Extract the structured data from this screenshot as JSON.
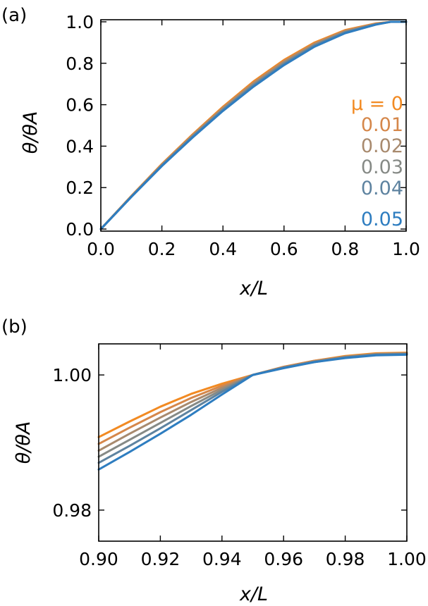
{
  "chart_data": [
    {
      "type": "line",
      "panel_label": "(a)",
      "xlabel": "x/L",
      "ylabel": "θ/θA",
      "xlim": [
        0.0,
        1.0
      ],
      "ylim": [
        -0.01,
        1.01
      ],
      "xticks": [
        0.0,
        0.2,
        0.4,
        0.6,
        0.8,
        1.0
      ],
      "xtick_labels": [
        "0.0",
        "0.2",
        "0.4",
        "0.6",
        "0.8",
        "1.0"
      ],
      "yticks": [
        0.0,
        0.2,
        0.4,
        0.6,
        0.8,
        1.0
      ],
      "ytick_labels": [
        "0.0",
        "0.2",
        "0.4",
        "0.6",
        "0.8",
        "1.0"
      ],
      "legend_title": "μ = 0",
      "legend_placement": "right",
      "series": [
        {
          "name": "0",
          "color": "#f28a22",
          "x": [
            0.0,
            0.1,
            0.2,
            0.3,
            0.4,
            0.5,
            0.6,
            0.7,
            0.8,
            0.9,
            0.95,
            1.0
          ],
          "y": [
            0.0,
            0.16,
            0.314,
            0.456,
            0.59,
            0.712,
            0.816,
            0.9,
            0.96,
            0.992,
            1.0,
            1.0
          ]
        },
        {
          "name": "0.01",
          "color": "#d5874a",
          "x": [
            0.0,
            0.1,
            0.2,
            0.3,
            0.4,
            0.5,
            0.6,
            0.7,
            0.8,
            0.9,
            0.95,
            1.0
          ],
          "y": [
            0.0,
            0.159,
            0.312,
            0.453,
            0.586,
            0.707,
            0.811,
            0.896,
            0.957,
            0.991,
            1.0,
            1.0
          ]
        },
        {
          "name": "0.02",
          "color": "#a88a6e",
          "x": [
            0.0,
            0.1,
            0.2,
            0.3,
            0.4,
            0.5,
            0.6,
            0.7,
            0.8,
            0.9,
            0.95,
            1.0
          ],
          "y": [
            0.0,
            0.158,
            0.31,
            0.45,
            0.582,
            0.702,
            0.806,
            0.892,
            0.954,
            0.989,
            1.0,
            1.0
          ]
        },
        {
          "name": "0.03",
          "color": "#868a86",
          "x": [
            0.0,
            0.1,
            0.2,
            0.3,
            0.4,
            0.5,
            0.6,
            0.7,
            0.8,
            0.9,
            0.95,
            1.0
          ],
          "y": [
            0.0,
            0.157,
            0.308,
            0.447,
            0.578,
            0.697,
            0.801,
            0.888,
            0.951,
            0.988,
            1.0,
            1.0
          ]
        },
        {
          "name": "0.04",
          "color": "#5e83a0",
          "x": [
            0.0,
            0.1,
            0.2,
            0.3,
            0.4,
            0.5,
            0.6,
            0.7,
            0.8,
            0.9,
            0.95,
            1.0
          ],
          "y": [
            0.0,
            0.156,
            0.306,
            0.444,
            0.574,
            0.692,
            0.796,
            0.884,
            0.948,
            0.987,
            1.0,
            1.0
          ]
        },
        {
          "name": "0.05",
          "color": "#2e7dc0",
          "x": [
            0.0,
            0.1,
            0.2,
            0.3,
            0.4,
            0.5,
            0.6,
            0.7,
            0.8,
            0.9,
            0.95,
            1.0
          ],
          "y": [
            0.0,
            0.155,
            0.304,
            0.441,
            0.57,
            0.687,
            0.791,
            0.88,
            0.945,
            0.986,
            1.0,
            1.0
          ]
        }
      ]
    },
    {
      "type": "line",
      "panel_label": "(b)",
      "xlabel": "x/L",
      "ylabel": "θ/θA",
      "xlim": [
        0.9,
        1.0
      ],
      "ylim": [
        0.9754,
        1.0046
      ],
      "xticks": [
        0.9,
        0.92,
        0.94,
        0.96,
        0.98,
        1.0
      ],
      "xtick_labels": [
        "0.90",
        "0.92",
        "0.94",
        "0.96",
        "0.98",
        "1.00"
      ],
      "yticks": [
        0.98,
        1.0
      ],
      "ytick_labels": [
        "0.98",
        "1.00"
      ],
      "series": [
        {
          "name": "0",
          "color": "#f28a22",
          "x": [
            0.9,
            0.91,
            0.92,
            0.93,
            0.94,
            0.95,
            0.96,
            0.97,
            0.98,
            0.99,
            1.0
          ],
          "y": [
            0.9908,
            0.9931,
            0.9953,
            0.9972,
            0.9987,
            1.0,
            1.0012,
            1.0021,
            1.0028,
            1.0032,
            1.0033
          ]
        },
        {
          "name": "0.01",
          "color": "#d5874a",
          "x": [
            0.9,
            0.91,
            0.92,
            0.93,
            0.94,
            0.95,
            0.96,
            0.97,
            0.98,
            0.99,
            1.0
          ],
          "y": [
            0.9898,
            0.9922,
            0.9945,
            0.9966,
            0.9984,
            1.0,
            1.0012,
            1.0021,
            1.0027,
            1.0031,
            1.0032
          ]
        },
        {
          "name": "0.02",
          "color": "#a88a6e",
          "x": [
            0.9,
            0.91,
            0.92,
            0.93,
            0.94,
            0.95,
            0.96,
            0.97,
            0.98,
            0.99,
            1.0
          ],
          "y": [
            0.9888,
            0.9913,
            0.9937,
            0.996,
            0.9981,
            1.0,
            1.0011,
            1.002,
            1.0027,
            1.0031,
            1.0032
          ]
        },
        {
          "name": "0.03",
          "color": "#868a86",
          "x": [
            0.9,
            0.91,
            0.92,
            0.93,
            0.94,
            0.95,
            0.96,
            0.97,
            0.98,
            0.99,
            1.0
          ],
          "y": [
            0.9879,
            0.9904,
            0.9929,
            0.9954,
            0.9978,
            1.0,
            1.0011,
            1.002,
            1.0026,
            1.003,
            1.0031
          ]
        },
        {
          "name": "0.04",
          "color": "#5e83a0",
          "x": [
            0.9,
            0.91,
            0.92,
            0.93,
            0.94,
            0.95,
            0.96,
            0.97,
            0.98,
            0.99,
            1.0
          ],
          "y": [
            0.987,
            0.9895,
            0.9921,
            0.9948,
            0.9975,
            1.0,
            1.0011,
            1.0019,
            1.0026,
            1.003,
            1.0031
          ]
        },
        {
          "name": "0.05",
          "color": "#2e7dc0",
          "x": [
            0.9,
            0.91,
            0.92,
            0.93,
            0.94,
            0.95,
            0.96,
            0.97,
            0.98,
            0.99,
            1.0
          ],
          "y": [
            0.986,
            0.9886,
            0.9913,
            0.9941,
            0.9971,
            1.0,
            1.001,
            1.0019,
            1.0025,
            1.0029,
            1.003
          ]
        }
      ]
    }
  ]
}
